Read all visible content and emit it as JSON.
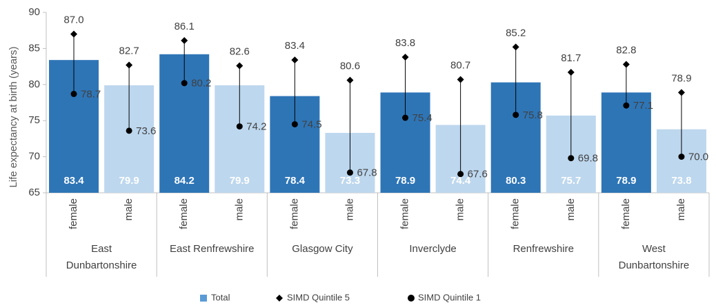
{
  "chart_data": {
    "type": "bar",
    "y_label": "Life expectancy at birth (years)",
    "categories": [
      "female",
      "male",
      "female",
      "male",
      "female",
      "male",
      "female",
      "male",
      "female",
      "male",
      "female",
      "male"
    ],
    "groups": [
      [
        "East",
        "Dunbartonshire"
      ],
      [
        "East Renfrewshire"
      ],
      [
        "Glasgow City"
      ],
      [
        "Inverclyde"
      ],
      [
        "Renfrewshire"
      ],
      [
        "West",
        "Dunbartonshire"
      ]
    ],
    "series": [
      {
        "name": "Total",
        "color": "#5b9bd5",
        "colors": [
          "#2e75b6",
          "#bdd7ee",
          "#2e75b6",
          "#bdd7ee",
          "#2e75b6",
          "#bdd7ee",
          "#2e75b6",
          "#bdd7ee",
          "#2e75b6",
          "#bdd7ee",
          "#2e75b6",
          "#bdd7ee"
        ],
        "values": [
          83.4,
          79.9,
          84.2,
          79.9,
          78.4,
          73.3,
          78.9,
          74.4,
          80.3,
          75.7,
          78.9,
          73.8
        ]
      },
      {
        "name": "SIMD Quintile 5",
        "color": "#000000",
        "marker": "diamond",
        "values": [
          87.0,
          82.7,
          86.1,
          82.6,
          83.4,
          80.6,
          83.8,
          80.7,
          85.2,
          81.7,
          82.8,
          78.9
        ],
        "value_labels": [
          "87.0",
          "82.7",
          "86.1",
          "82.6",
          "83.4",
          "80.6",
          "83.8",
          "80.7",
          "85.2",
          "81.7",
          "82.8",
          "78.9"
        ]
      },
      {
        "name": "SIMD Quintile 1",
        "color": "#000000",
        "marker": "circle",
        "values": [
          78.7,
          73.6,
          80.2,
          74.2,
          74.5,
          67.8,
          75.4,
          67.6,
          75.8,
          69.8,
          77.1,
          70.0
        ],
        "value_labels": [
          "78.7",
          "73.6",
          "80.2",
          "74.2",
          "74.5",
          "67.8",
          "75.4",
          "67.6",
          "75.8",
          "69.8",
          "77.1",
          "70.0"
        ]
      }
    ],
    "ylim": [
      65,
      90
    ],
    "yticks": [
      65,
      70,
      75,
      80,
      85,
      90
    ],
    "legend": "bottom"
  }
}
